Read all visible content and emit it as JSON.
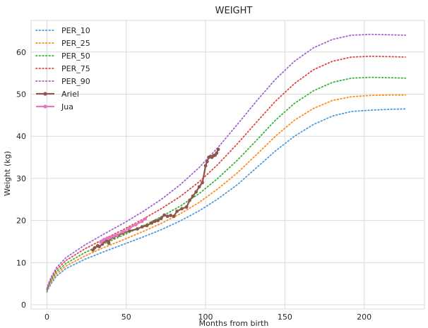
{
  "chart_data": {
    "type": "line",
    "title": "WEIGHT",
    "xlabel": "Months from birth",
    "ylabel": "Weight (kg)",
    "xlim": [
      -10,
      238
    ],
    "ylim": [
      -1,
      67.5
    ],
    "xticks": [
      0,
      50,
      100,
      150,
      200
    ],
    "yticks": [
      0,
      10,
      20,
      30,
      40,
      50,
      60
    ],
    "grid": true,
    "legend_position": "top-left",
    "series": [
      {
        "name": "PER_10",
        "style": "dotted",
        "color": "#4c9be0",
        "x": [
          0,
          1,
          3,
          6,
          12,
          24,
          36,
          48,
          60,
          72,
          84,
          96,
          108,
          120,
          132,
          144,
          156,
          168,
          180,
          192,
          204,
          216,
          226
        ],
        "y": [
          3.0,
          3.9,
          5.2,
          6.8,
          8.6,
          10.8,
          12.6,
          14.3,
          16.0,
          17.8,
          19.9,
          22.3,
          25.2,
          28.5,
          32.5,
          36.5,
          40.0,
          42.8,
          44.8,
          45.9,
          46.2,
          46.4,
          46.5
        ]
      },
      {
        "name": "PER_25",
        "style": "dotted",
        "color": "#ff8c1a",
        "x": [
          0,
          1,
          3,
          6,
          12,
          24,
          36,
          48,
          60,
          72,
          84,
          96,
          108,
          120,
          132,
          144,
          156,
          168,
          180,
          192,
          204,
          216,
          226
        ],
        "y": [
          3.2,
          4.2,
          5.6,
          7.3,
          9.2,
          11.6,
          13.6,
          15.4,
          17.3,
          19.3,
          21.6,
          24.3,
          27.6,
          31.3,
          35.6,
          40.0,
          43.8,
          46.6,
          48.5,
          49.4,
          49.7,
          49.8,
          49.8
        ]
      },
      {
        "name": "PER_50",
        "style": "dotted",
        "color": "#39b339",
        "x": [
          0,
          1,
          3,
          6,
          12,
          24,
          36,
          48,
          60,
          72,
          84,
          96,
          108,
          120,
          132,
          144,
          156,
          168,
          180,
          192,
          204,
          216,
          226
        ],
        "y": [
          3.4,
          4.5,
          6.0,
          7.8,
          9.8,
          12.4,
          14.5,
          16.5,
          18.6,
          20.9,
          23.4,
          26.4,
          30.1,
          34.3,
          39.0,
          43.8,
          47.8,
          50.8,
          52.8,
          53.8,
          54.0,
          53.9,
          53.8
        ]
      },
      {
        "name": "PER_75",
        "style": "dotted",
        "color": "#e04444",
        "x": [
          0,
          1,
          3,
          6,
          12,
          24,
          36,
          48,
          60,
          72,
          84,
          96,
          108,
          120,
          132,
          144,
          156,
          168,
          180,
          192,
          204,
          216,
          226
        ],
        "y": [
          3.6,
          4.8,
          6.4,
          8.3,
          10.5,
          13.3,
          15.6,
          17.8,
          20.2,
          22.8,
          25.7,
          29.2,
          33.4,
          38.2,
          43.3,
          48.3,
          52.5,
          55.8,
          57.8,
          58.8,
          59.0,
          58.9,
          58.8
        ]
      },
      {
        "name": "PER_90",
        "style": "dotted",
        "color": "#a064d0",
        "x": [
          0,
          1,
          3,
          6,
          12,
          24,
          36,
          48,
          60,
          72,
          84,
          96,
          108,
          120,
          132,
          144,
          156,
          168,
          180,
          192,
          204,
          216,
          226
        ],
        "y": [
          3.8,
          5.1,
          6.8,
          8.8,
          11.2,
          14.2,
          16.8,
          19.3,
          22.0,
          25.0,
          28.5,
          32.6,
          37.4,
          42.8,
          48.3,
          53.5,
          57.8,
          61.0,
          63.0,
          64.0,
          64.2,
          64.1,
          64.0
        ]
      },
      {
        "name": "Ariel",
        "style": "solid-marker",
        "color": "#8c564b",
        "x": [
          29,
          30,
          32,
          33,
          35,
          36,
          37,
          38,
          39,
          40,
          42,
          45,
          48,
          52,
          57,
          60,
          63,
          66,
          68,
          70,
          72,
          74,
          76,
          78,
          80,
          82,
          85,
          88,
          90,
          92,
          94,
          96,
          98,
          100,
          101,
          102,
          103,
          104,
          105,
          106,
          107,
          108
        ],
        "y": [
          13.0,
          13.5,
          14.0,
          13.8,
          14.4,
          15.0,
          15.5,
          15.2,
          14.6,
          15.8,
          16.0,
          16.5,
          17.0,
          17.5,
          18.0,
          18.5,
          18.8,
          19.4,
          19.8,
          20.0,
          20.5,
          21.3,
          21.0,
          21.2,
          21.0,
          22.2,
          22.8,
          23.2,
          24.8,
          25.8,
          26.8,
          28.0,
          29.0,
          33.0,
          34.0,
          35.0,
          35.2,
          35.0,
          35.4,
          35.5,
          36.0,
          36.9
        ]
      },
      {
        "name": "Jua",
        "style": "solid-marker",
        "color": "#e377c2",
        "x": [
          34,
          35,
          36,
          38,
          40,
          42,
          44,
          48,
          52,
          56,
          60,
          62
        ],
        "y": [
          14.8,
          15.2,
          15.5,
          15.8,
          16.0,
          16.3,
          16.6,
          17.3,
          18.2,
          19.0,
          19.8,
          20.4
        ]
      }
    ]
  }
}
